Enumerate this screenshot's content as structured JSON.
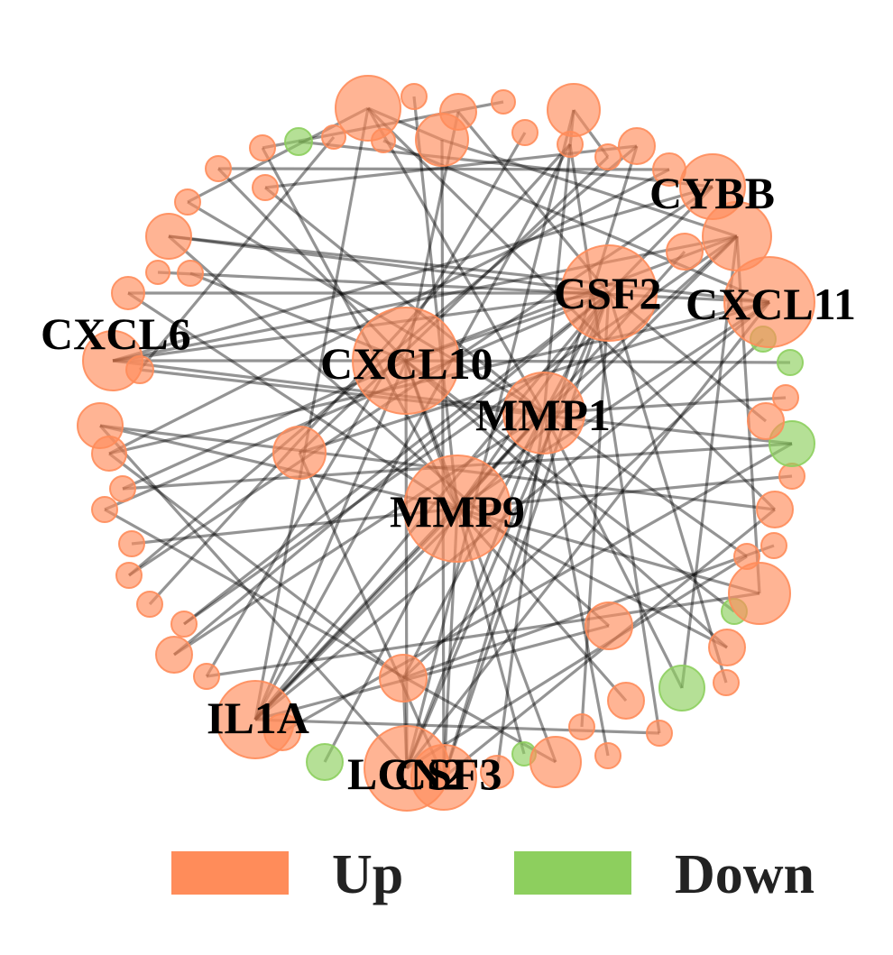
{
  "colors": {
    "up": "#FF8C5A",
    "down": "#8DCF5E",
    "edge": "#000000"
  },
  "labels": [
    "CYBB",
    "CSF2",
    "CXCL11",
    "CXCL6",
    "CXCL10",
    "MMP1",
    "MMP9",
    "IL1A",
    "LCN2",
    "CSF3"
  ],
  "legend": {
    "up_label": "Up",
    "down_label": "Down"
  }
}
